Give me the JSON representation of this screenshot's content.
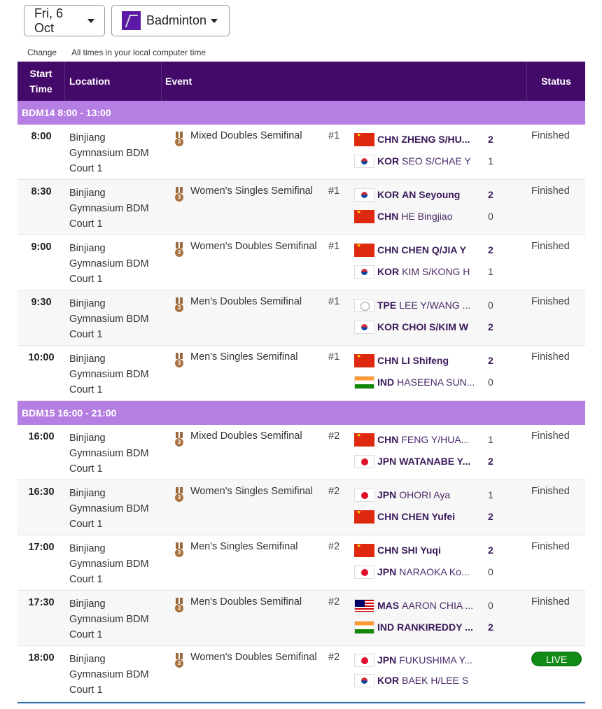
{
  "filters": {
    "date": "Fri, 6 Oct",
    "sport": "Badminton",
    "sport_icon": "badminton-icon"
  },
  "notes": {
    "change": "Change",
    "timezone": "All times in your local computer time"
  },
  "headers": {
    "start": "Start Time",
    "location": "Location",
    "event": "Event",
    "status": "Status"
  },
  "colors": {
    "header": "#440a6a",
    "group": "#b57ee3",
    "live": "#118a16"
  },
  "groups": [
    {
      "title": "BDM14  8:00 - 13:00",
      "rows": [
        {
          "time": "8:00",
          "location": "Binjiang Gymnasium BDM Court 1",
          "event": "Mixed Doubles Semifinal",
          "num": "#1",
          "status": "Finished",
          "competitors": [
            {
              "code": "CHN",
              "name": "ZHENG S/HU...",
              "score": "2",
              "win": true
            },
            {
              "code": "KOR",
              "name": "SEO S/CHAE Y",
              "score": "1",
              "win": false
            }
          ]
        },
        {
          "time": "8:30",
          "location": "Binjiang Gymnasium BDM Court 1",
          "event": "Women's Singles Semifinal",
          "num": "#1",
          "status": "Finished",
          "competitors": [
            {
              "code": "KOR",
              "name": "AN Seyoung",
              "score": "2",
              "win": true
            },
            {
              "code": "CHN",
              "name": "HE Bingjiao",
              "score": "0",
              "win": false
            }
          ]
        },
        {
          "time": "9:00",
          "location": "Binjiang Gymnasium BDM Court 1",
          "event": "Women's Doubles Semifinal",
          "num": "#1",
          "status": "Finished",
          "competitors": [
            {
              "code": "CHN",
              "name": "CHEN Q/JIA Y",
              "score": "2",
              "win": true
            },
            {
              "code": "KOR",
              "name": "KIM S/KONG H",
              "score": "1",
              "win": false
            }
          ]
        },
        {
          "time": "9:30",
          "location": "Binjiang Gymnasium BDM Court 1",
          "event": "Men's Doubles Semifinal",
          "num": "#1",
          "status": "Finished",
          "competitors": [
            {
              "code": "TPE",
              "name": "LEE Y/WANG ...",
              "score": "0",
              "win": false
            },
            {
              "code": "KOR",
              "name": "CHOI S/KIM W",
              "score": "2",
              "win": true
            }
          ]
        },
        {
          "time": "10:00",
          "location": "Binjiang Gymnasium BDM Court 1",
          "event": "Men's Singles Semifinal",
          "num": "#1",
          "status": "Finished",
          "competitors": [
            {
              "code": "CHN",
              "name": "LI Shifeng",
              "score": "2",
              "win": true
            },
            {
              "code": "IND",
              "name": "HASEENA SUN...",
              "score": "0",
              "win": false
            }
          ]
        }
      ]
    },
    {
      "title": "BDM15  16:00 - 21:00",
      "rows": [
        {
          "time": "16:00",
          "location": "Binjiang Gymnasium BDM Court 1",
          "event": "Mixed Doubles Semifinal",
          "num": "#2",
          "status": "Finished",
          "competitors": [
            {
              "code": "CHN",
              "name": "FENG Y/HUA...",
              "score": "1",
              "win": false
            },
            {
              "code": "JPN",
              "name": "WATANABE Y...",
              "score": "2",
              "win": true
            }
          ]
        },
        {
          "time": "16:30",
          "location": "Binjiang Gymnasium BDM Court 1",
          "event": "Women's Singles Semifinal",
          "num": "#2",
          "status": "Finished",
          "competitors": [
            {
              "code": "JPN",
              "name": "OHORI Aya",
              "score": "1",
              "win": false
            },
            {
              "code": "CHN",
              "name": "CHEN Yufei",
              "score": "2",
              "win": true
            }
          ]
        },
        {
          "time": "17:00",
          "location": "Binjiang Gymnasium BDM Court 1",
          "event": "Men's Singles Semifinal",
          "num": "#2",
          "status": "Finished",
          "competitors": [
            {
              "code": "CHN",
              "name": "SHI Yuqi",
              "score": "2",
              "win": true
            },
            {
              "code": "JPN",
              "name": "NARAOKA Ko...",
              "score": "0",
              "win": false
            }
          ]
        },
        {
          "time": "17:30",
          "location": "Binjiang Gymnasium BDM Court 1",
          "event": "Men's Doubles Semifinal",
          "num": "#2",
          "status": "Finished",
          "competitors": [
            {
              "code": "MAS",
              "name": "AARON CHIA ...",
              "score": "0",
              "win": false
            },
            {
              "code": "IND",
              "name": "RANKIREDDY ...",
              "score": "2",
              "win": true
            }
          ]
        },
        {
          "time": "18:00",
          "location": "Binjiang Gymnasium BDM Court 1",
          "event": "Women's Doubles Semifinal",
          "num": "#2",
          "status": "LIVE",
          "live": true,
          "competitors": [
            {
              "code": "JPN",
              "name": "FUKUSHIMA Y...",
              "win": false
            },
            {
              "code": "KOR",
              "name": "BAEK H/LEE S",
              "win": false
            }
          ]
        }
      ]
    }
  ]
}
